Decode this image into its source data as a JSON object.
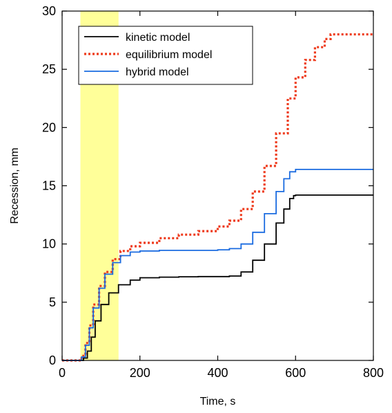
{
  "chart_data": {
    "type": "line",
    "xlabel": "Time, s",
    "ylabel": "Recession, mm",
    "xlim": [
      0,
      800
    ],
    "ylim": [
      0,
      30
    ],
    "xticks": [
      0,
      200,
      400,
      600,
      800
    ],
    "yticks": [
      0,
      5,
      10,
      15,
      20,
      25,
      30
    ],
    "grid": false,
    "legend_position": "top-left",
    "highlight_band": {
      "x0": 47,
      "x1": 145,
      "color": "#ffff99"
    },
    "series": [
      {
        "name": "kinetic model",
        "color": "#000000",
        "style": "solid",
        "x": [
          0,
          40,
          55,
          65,
          75,
          85,
          100,
          120,
          145,
          175,
          200,
          250,
          300,
          350,
          400,
          430,
          460,
          490,
          520,
          550,
          570,
          585,
          595,
          600,
          650,
          700,
          750,
          800
        ],
        "y": [
          0,
          0,
          0.2,
          0.8,
          2.0,
          3.4,
          4.8,
          5.8,
          6.5,
          6.9,
          7.1,
          7.15,
          7.18,
          7.2,
          7.2,
          7.25,
          7.6,
          8.6,
          10.0,
          11.8,
          13.0,
          13.9,
          14.15,
          14.2,
          14.2,
          14.2,
          14.2,
          14.2
        ]
      },
      {
        "name": "equilibrium model",
        "color": "#ee3a1c",
        "style": "dotted",
        "x": [
          0,
          40,
          50,
          60,
          70,
          80,
          95,
          110,
          130,
          150,
          175,
          200,
          250,
          300,
          350,
          400,
          430,
          460,
          490,
          520,
          550,
          580,
          600,
          625,
          650,
          675,
          690,
          700,
          750,
          800
        ],
        "y": [
          0,
          0,
          0.4,
          1.5,
          3.0,
          4.8,
          6.4,
          7.6,
          8.7,
          9.4,
          9.8,
          10.1,
          10.5,
          10.8,
          11.1,
          11.5,
          12.0,
          13.0,
          14.5,
          16.7,
          19.5,
          22.5,
          24.3,
          25.8,
          26.9,
          27.6,
          28.0,
          28.0,
          28.0,
          28.0
        ]
      },
      {
        "name": "hybrid model",
        "color": "#1a6be0",
        "style": "solid",
        "x": [
          0,
          40,
          50,
          60,
          70,
          80,
          95,
          110,
          130,
          150,
          175,
          200,
          250,
          300,
          350,
          400,
          430,
          460,
          490,
          520,
          550,
          570,
          585,
          600,
          650,
          700,
          750,
          800
        ],
        "y": [
          0,
          0,
          0.3,
          1.3,
          2.8,
          4.5,
          6.2,
          7.4,
          8.4,
          9.0,
          9.3,
          9.4,
          9.45,
          9.45,
          9.45,
          9.5,
          9.6,
          10.0,
          11.0,
          12.6,
          14.5,
          15.6,
          16.2,
          16.4,
          16.4,
          16.4,
          16.4,
          16.4
        ]
      }
    ]
  }
}
